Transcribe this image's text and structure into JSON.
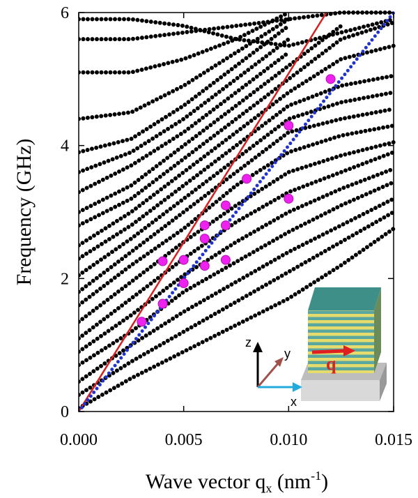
{
  "chart_data": {
    "type": "scatter",
    "y_label": "Frequency (GHz)",
    "x_label": {
      "text": "Wave vector q",
      "sub": "x",
      "open": " (nm",
      "sup": "-1",
      "close": ")"
    },
    "xlim": [
      0,
      0.015
    ],
    "ylim": [
      0,
      6
    ],
    "xticks": [
      {
        "value": 0,
        "label": "0.000"
      },
      {
        "value": 0.005,
        "label": "0.005"
      },
      {
        "value": 0.01,
        "label": "0.010"
      },
      {
        "value": 0.015,
        "label": "0.015"
      }
    ],
    "yticks": [
      0,
      2,
      4,
      6
    ],
    "branch_color": "#000000",
    "branch_x": [
      0,
      0.0025,
      0.005,
      0.0075,
      0.01,
      0.0125,
      0.015
    ],
    "branches": [
      [
        0.05,
        0.5,
        0.9,
        1.3,
        1.7,
        2.2,
        2.75
      ],
      [
        0.25,
        0.75,
        1.2,
        1.65,
        2.1,
        2.55,
        3.0
      ],
      [
        0.45,
        1.0,
        1.5,
        1.95,
        2.4,
        2.8,
        3.2
      ],
      [
        0.7,
        1.2,
        1.8,
        2.25,
        2.7,
        3.1,
        3.45
      ],
      [
        0.9,
        1.45,
        2.05,
        2.55,
        3.0,
        3.35,
        3.65
      ],
      [
        1.1,
        1.7,
        2.3,
        2.85,
        3.3,
        3.6,
        3.9
      ],
      [
        1.35,
        1.95,
        2.55,
        3.1,
        3.6,
        3.85,
        4.05
      ],
      [
        1.6,
        2.2,
        2.75,
        3.4,
        3.9,
        4.15,
        4.3
      ],
      [
        1.8,
        2.4,
        3.0,
        3.6,
        4.2,
        4.4,
        4.55
      ],
      [
        2.05,
        2.6,
        3.2,
        3.8,
        4.4,
        4.65,
        4.8
      ],
      [
        2.3,
        2.8,
        3.4,
        4.0,
        4.6,
        4.9,
        5.05
      ],
      [
        2.5,
        3.0,
        3.6,
        4.2,
        4.8,
        5.3,
        5.5
      ],
      [
        2.8,
        3.2,
        3.8,
        4.4,
        5.0,
        5.6,
        5.85
      ],
      [
        3.0,
        3.4,
        4.0,
        4.6,
        5.2,
        5.8,
        null
      ],
      [
        3.3,
        3.7,
        4.2,
        4.8,
        5.4,
        null,
        null
      ],
      [
        3.6,
        3.9,
        4.4,
        5.0,
        5.6,
        null,
        null
      ],
      [
        3.9,
        4.1,
        4.6,
        5.2,
        5.8,
        null,
        null
      ],
      [
        4.4,
        4.5,
        4.9,
        5.4,
        5.9,
        null,
        null
      ],
      [
        5.1,
        5.1,
        5.3,
        5.6,
        6.0,
        null,
        null
      ],
      [
        5.6,
        5.6,
        5.7,
        5.8,
        5.9,
        6.0,
        6.0
      ],
      [
        5.9,
        5.9,
        5.8,
        5.6,
        5.5,
        5.7,
        5.9
      ]
    ],
    "lines": [
      {
        "color": "#d42020",
        "dotted": false,
        "x": [
          0,
          0.0118
        ],
        "y": [
          0,
          6
        ]
      },
      {
        "color": "#2233cc",
        "dotted": true,
        "x": [
          0,
          0.015
        ],
        "y": [
          0,
          6
        ]
      }
    ],
    "points": {
      "color": "#ee22ee",
      "x": [
        0.003,
        0.004,
        0.004,
        0.005,
        0.005,
        0.006,
        0.006,
        0.006,
        0.007,
        0.007,
        0.007,
        0.008,
        0.01,
        0.01,
        0.012
      ],
      "y": [
        1.35,
        1.62,
        2.26,
        1.93,
        2.28,
        2.19,
        2.6,
        2.8,
        2.28,
        2.8,
        3.1,
        3.5,
        3.2,
        4.3,
        5.0
      ]
    },
    "inset": {
      "z": "z",
      "y": "y",
      "x": "x",
      "q": "q"
    }
  }
}
